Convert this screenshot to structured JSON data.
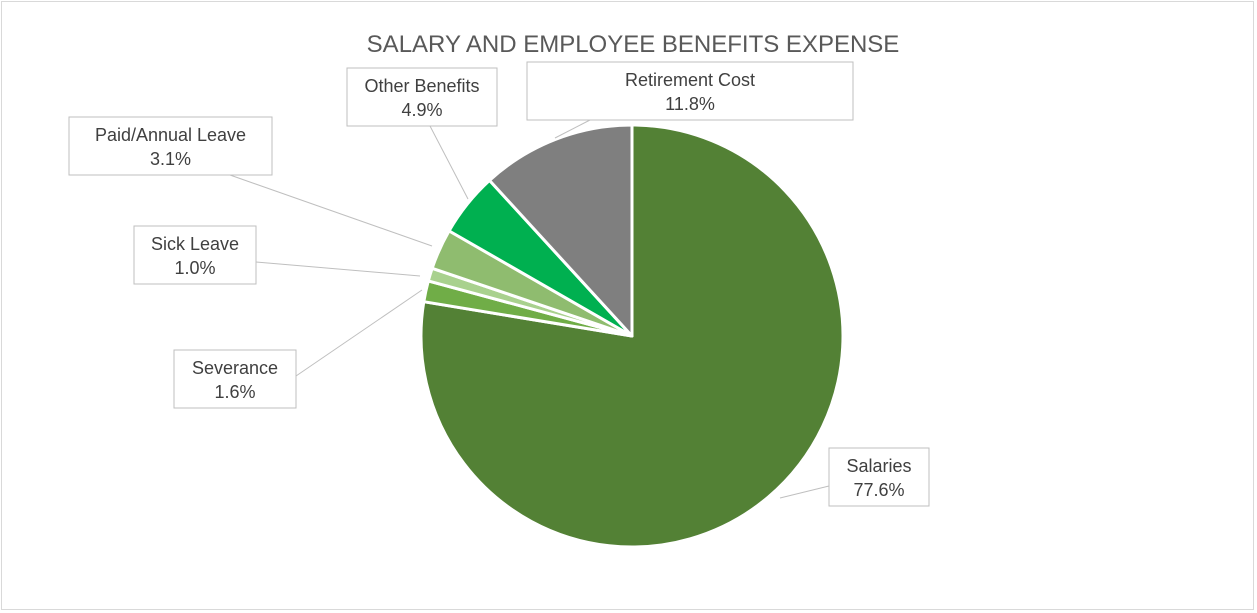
{
  "chart_data": {
    "type": "pie",
    "title": "SALARY AND EMPLOYEE BENEFITS EXPENSE",
    "start": "12 o'clock, clockwise",
    "slices": [
      {
        "name": "Salaries",
        "value": 77.6,
        "label": "77.6%",
        "color": "#538135"
      },
      {
        "name": "Severance",
        "value": 1.6,
        "label": "1.6%",
        "color": "#70ad47"
      },
      {
        "name": "Sick Leave",
        "value": 1.0,
        "label": "1.0%",
        "color": "#a9d18e"
      },
      {
        "name": "Paid/Annual Leave",
        "value": 3.1,
        "label": "3.1%",
        "color": "#8fbc6f"
      },
      {
        "name": "Other Benefits",
        "value": 4.9,
        "label": "4.9%",
        "color": "#00b050"
      },
      {
        "name": "Retirement Cost",
        "value": 11.8,
        "label": "11.8%",
        "color": "#7f7f7f"
      }
    ]
  }
}
